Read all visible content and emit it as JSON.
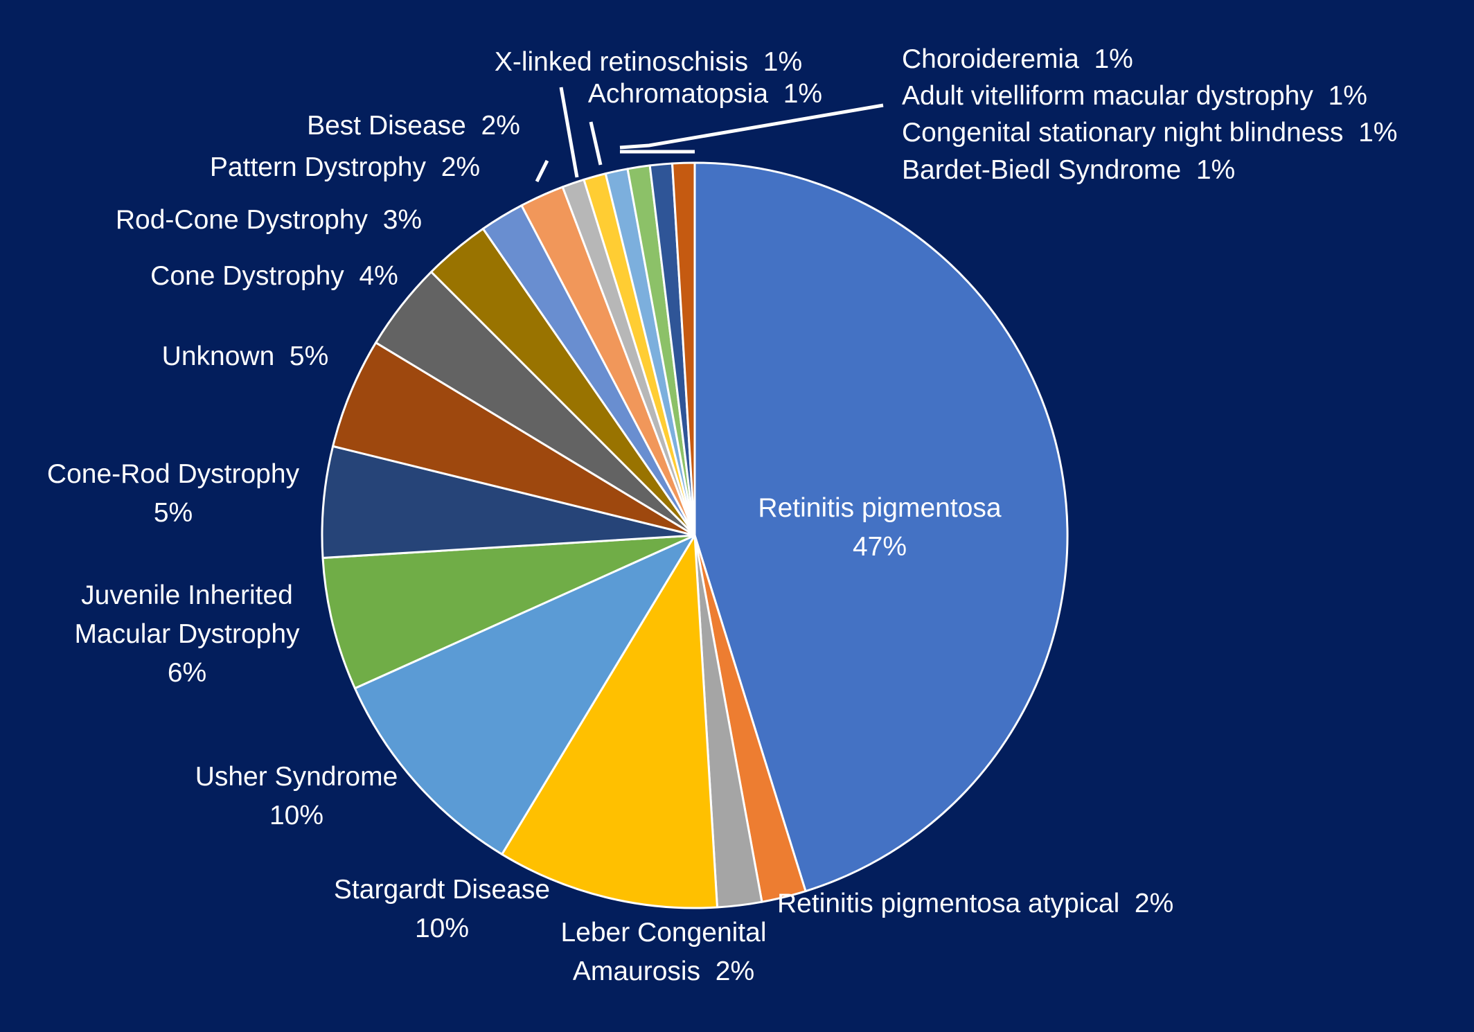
{
  "chart_data": {
    "type": "pie",
    "start_angle_deg": 0,
    "direction": "clockwise",
    "grid": false,
    "legend": "none",
    "slices": [
      {
        "label": "Retinitis pigmentosa",
        "value": 47,
        "display": "47%",
        "color": "#4472c4"
      },
      {
        "label": "Retinitis pigmentosa atypical",
        "value": 2,
        "display": "2%",
        "color": "#ed7d31"
      },
      {
        "label": "Leber Congenital Amaurosis",
        "value": 2,
        "display": "2%",
        "color": "#a5a5a5"
      },
      {
        "label": "Stargardt Disease",
        "value": 10,
        "display": "10%",
        "color": "#ffc000"
      },
      {
        "label": "Usher Syndrome",
        "value": 10,
        "display": "10%",
        "color": "#5b9bd5"
      },
      {
        "label": "Juvenile Inherited Macular Dystrophy",
        "value": 6,
        "display": "6%",
        "color": "#70ad47"
      },
      {
        "label": "Cone-Rod Dystrophy",
        "value": 5,
        "display": "5%",
        "color": "#264478"
      },
      {
        "label": "Unknown",
        "value": 5,
        "display": "5%",
        "color": "#9e480e"
      },
      {
        "label": "Cone Dystrophy",
        "value": 4,
        "display": "4%",
        "color": "#636363"
      },
      {
        "label": "Rod-Cone Dystrophy",
        "value": 3,
        "display": "3%",
        "color": "#997300"
      },
      {
        "label": "Pattern Dystrophy",
        "value": 2,
        "display": "2%",
        "color": "#698ed0"
      },
      {
        "label": "Best Disease",
        "value": 2,
        "display": "2%",
        "color": "#f1975a"
      },
      {
        "label": "X-linked retinoschisis",
        "value": 1,
        "display": "1%",
        "color": "#b7b7b7"
      },
      {
        "label": "Achromatopsia",
        "value": 1,
        "display": "1%",
        "color": "#ffcd33"
      },
      {
        "label": "Choroideremia",
        "value": 1,
        "display": "1%",
        "color": "#7cafdd"
      },
      {
        "label": "Adult vitelliform macular dystrophy",
        "value": 1,
        "display": "1%",
        "color": "#8cc168"
      },
      {
        "label": "Congenital stationary night blindness",
        "value": 1,
        "display": "1%",
        "color": "#2f5597"
      },
      {
        "label": "Bardet-Biedl Syndrome",
        "value": 1,
        "display": "1%",
        "color": "#c55a11"
      }
    ],
    "label_lines": [
      [
        "Retinitis pigmentosa",
        "47%"
      ],
      [
        "Retinitis pigmentosa atypical  2%"
      ],
      [
        "Leber Congenital",
        "Amaurosis  2%"
      ],
      [
        "Stargardt Disease",
        "10%"
      ],
      [
        "Usher Syndrome",
        "10%"
      ],
      [
        "Juvenile Inherited",
        "Macular Dystrophy",
        "6%"
      ],
      [
        "Cone-Rod Dystrophy",
        "5%"
      ],
      [
        "Unknown  5%"
      ],
      [
        "Cone Dystrophy  4%"
      ],
      [
        "Rod-Cone Dystrophy  3%"
      ],
      [
        "Pattern Dystrophy  2%"
      ],
      [
        "Best Disease  2%"
      ],
      [
        "X-linked retinoschisis  1%"
      ],
      [
        "Achromatopsia  1%"
      ],
      [
        "Choroideremia  1%"
      ],
      [
        "Adult vitelliform macular dystrophy  1%"
      ],
      [
        "Congenital stationary night blindness  1%"
      ],
      [
        "Bardet-Biedl Syndrome  1%"
      ]
    ]
  }
}
